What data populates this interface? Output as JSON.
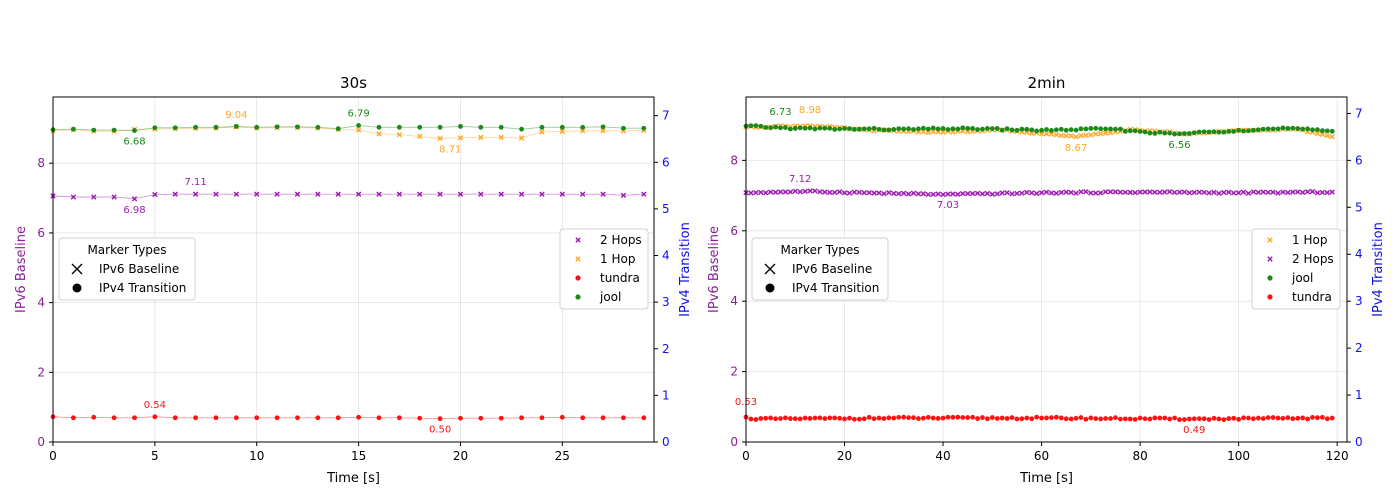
{
  "colors": {
    "hop2": "#9b1bb0",
    "hop1": "#ffa726",
    "tundra": "#ff1111",
    "jool": "#1a8a1a",
    "left_axis": "#8b1f96",
    "right_axis": "#1010ee"
  },
  "legends": {
    "marker_title": "Marker Types",
    "marker_items": [
      "IPv6 Baseline",
      "IPv4 Transition"
    ],
    "marker_glyphs": [
      "x-marker",
      "circle-marker"
    ]
  },
  "chart_data": [
    {
      "type": "line",
      "title": "30s",
      "xlabel": "Time [s]",
      "ylabel": "IPv6 Baseline",
      "y2label": "IPv4 Transition",
      "xlim": [
        0,
        29.5
      ],
      "ylim": [
        0,
        9.9
      ],
      "y2lim": [
        0,
        7.4
      ],
      "xticks": [
        0,
        5,
        10,
        15,
        20,
        25
      ],
      "yticks": [
        0,
        2,
        4,
        6,
        8
      ],
      "y2ticks": [
        0,
        1,
        2,
        3,
        4,
        5,
        6,
        7
      ],
      "legend_order": [
        "2 Hops",
        "1 Hop",
        "tundra",
        "jool"
      ],
      "legend_placement": "center-right",
      "grid": true,
      "series": [
        {
          "name": "2 Hops",
          "axis": "left",
          "marker": "x",
          "color_key": "hop2",
          "y": [
            7.06,
            7.03,
            7.03,
            7.03,
            6.98,
            7.1,
            7.11,
            7.11,
            7.11,
            7.11,
            7.11,
            7.11,
            7.11,
            7.11,
            7.11,
            7.11,
            7.11,
            7.11,
            7.11,
            7.11,
            7.11,
            7.11,
            7.11,
            7.11,
            7.11,
            7.11,
            7.11,
            7.11,
            7.08,
            7.11
          ]
        },
        {
          "name": "1 Hop",
          "axis": "left",
          "marker": "x",
          "color_key": "hop1",
          "y": [
            8.93,
            8.96,
            8.92,
            8.92,
            8.97,
            8.98,
            8.99,
            9.0,
            9.01,
            9.04,
            9.01,
            9.02,
            9.02,
            9.01,
            8.97,
            8.95,
            8.84,
            8.82,
            8.77,
            8.71,
            8.73,
            8.74,
            8.74,
            8.72,
            8.9,
            8.91,
            8.93,
            8.93,
            8.93,
            8.94
          ]
        },
        {
          "name": "tundra",
          "axis": "right",
          "marker": "o",
          "color_key": "tundra",
          "y": [
            0.54,
            0.52,
            0.53,
            0.52,
            0.52,
            0.54,
            0.52,
            0.52,
            0.52,
            0.52,
            0.52,
            0.52,
            0.52,
            0.52,
            0.52,
            0.53,
            0.52,
            0.52,
            0.51,
            0.5,
            0.51,
            0.51,
            0.51,
            0.52,
            0.52,
            0.53,
            0.52,
            0.52,
            0.52,
            0.52
          ]
        },
        {
          "name": "jool",
          "axis": "right",
          "marker": "o",
          "color_key": "jool",
          "y": [
            6.7,
            6.71,
            6.69,
            6.69,
            6.68,
            6.74,
            6.74,
            6.75,
            6.75,
            6.77,
            6.75,
            6.76,
            6.76,
            6.75,
            6.72,
            6.79,
            6.75,
            6.75,
            6.75,
            6.75,
            6.77,
            6.75,
            6.75,
            6.71,
            6.75,
            6.75,
            6.75,
            6.76,
            6.73,
            6.73
          ]
        }
      ],
      "annotations": [
        {
          "text": "6.98",
          "x": 4,
          "series": "2 Hops"
        },
        {
          "text": "7.11",
          "x": 7,
          "series": "2 Hops"
        },
        {
          "text": "9.04",
          "x": 9,
          "series": "1 Hop"
        },
        {
          "text": "8.71",
          "x": 19.5,
          "series": "1 Hop"
        },
        {
          "text": "0.54",
          "x": 5,
          "series": "tundra"
        },
        {
          "text": "0.50",
          "x": 19,
          "series": "tundra"
        },
        {
          "text": "6.68",
          "x": 4,
          "series": "jool"
        },
        {
          "text": "6.79",
          "x": 15,
          "series": "jool"
        }
      ]
    },
    {
      "type": "line",
      "title": "2min",
      "xlabel": "Time [s]",
      "ylabel": "IPv6 Baseline",
      "y2label": "IPv4 Transition",
      "xlim": [
        0,
        122
      ],
      "ylim": [
        0,
        9.8
      ],
      "y2lim": [
        0,
        7.35
      ],
      "xticks": [
        0,
        20,
        40,
        60,
        80,
        100,
        120
      ],
      "yticks": [
        0,
        2,
        4,
        6,
        8
      ],
      "y2ticks": [
        0,
        1,
        2,
        3,
        4,
        5,
        6,
        7
      ],
      "legend_order": [
        "1 Hop",
        "2 Hops",
        "jool",
        "tundra"
      ],
      "legend_placement": "center-right",
      "grid": true,
      "series": [
        {
          "name": "1 Hop",
          "axis": "left",
          "marker": "x",
          "color_key": "hop1",
          "pattern": {
            "start": 0,
            "end": 119,
            "base": 8.85,
            "points": [
              [
                0,
                8.95
              ],
              [
                13,
                8.98
              ],
              [
                25,
                8.86
              ],
              [
                40,
                8.8
              ],
              [
                52,
                8.86
              ],
              [
                67,
                8.67
              ],
              [
                78,
                8.88
              ],
              [
                90,
                8.75
              ],
              [
                100,
                8.85
              ],
              [
                112,
                8.88
              ],
              [
                119,
                8.67
              ]
            ]
          }
        },
        {
          "name": "2 Hops",
          "axis": "left",
          "marker": "x",
          "color_key": "hop2",
          "pattern": {
            "start": 0,
            "end": 119,
            "points": [
              [
                0,
                7.08
              ],
              [
                12,
                7.12
              ],
              [
                40,
                7.03
              ],
              [
                60,
                7.08
              ],
              [
                80,
                7.1
              ],
              [
                100,
                7.08
              ],
              [
                119,
                7.1
              ]
            ]
          }
        },
        {
          "name": "jool",
          "axis": "right",
          "marker": "o",
          "color_key": "jool",
          "pattern": {
            "start": 0,
            "end": 119,
            "points": [
              [
                0,
                6.73
              ],
              [
                10,
                6.68
              ],
              [
                30,
                6.66
              ],
              [
                45,
                6.68
              ],
              [
                60,
                6.64
              ],
              [
                73,
                6.67
              ],
              [
                87,
                6.56
              ],
              [
                100,
                6.64
              ],
              [
                110,
                6.68
              ],
              [
                119,
                6.62
              ]
            ]
          }
        },
        {
          "name": "tundra",
          "axis": "right",
          "marker": "o",
          "color_key": "tundra",
          "pattern": {
            "start": 0,
            "end": 119,
            "points": [
              [
                0,
                0.53
              ],
              [
                1,
                0.49
              ],
              [
                30,
                0.51
              ],
              [
                60,
                0.51
              ],
              [
                90,
                0.49
              ],
              [
                119,
                0.51
              ]
            ]
          }
        }
      ],
      "annotations": [
        {
          "text": "6.73",
          "x": 7,
          "series": "jool"
        },
        {
          "text": "8.98",
          "x": 13,
          "series": "1 Hop"
        },
        {
          "text": "7.12",
          "x": 11,
          "series": "2 Hops"
        },
        {
          "text": "7.03",
          "x": 41,
          "series": "2 Hops"
        },
        {
          "text": "8.67",
          "x": 67,
          "series": "1 Hop"
        },
        {
          "text": "6.56",
          "x": 88,
          "series": "jool"
        },
        {
          "text": "0.53",
          "x": 0,
          "series": "tundra"
        },
        {
          "text": "0.49",
          "x": 91,
          "series": "tundra"
        }
      ]
    }
  ]
}
